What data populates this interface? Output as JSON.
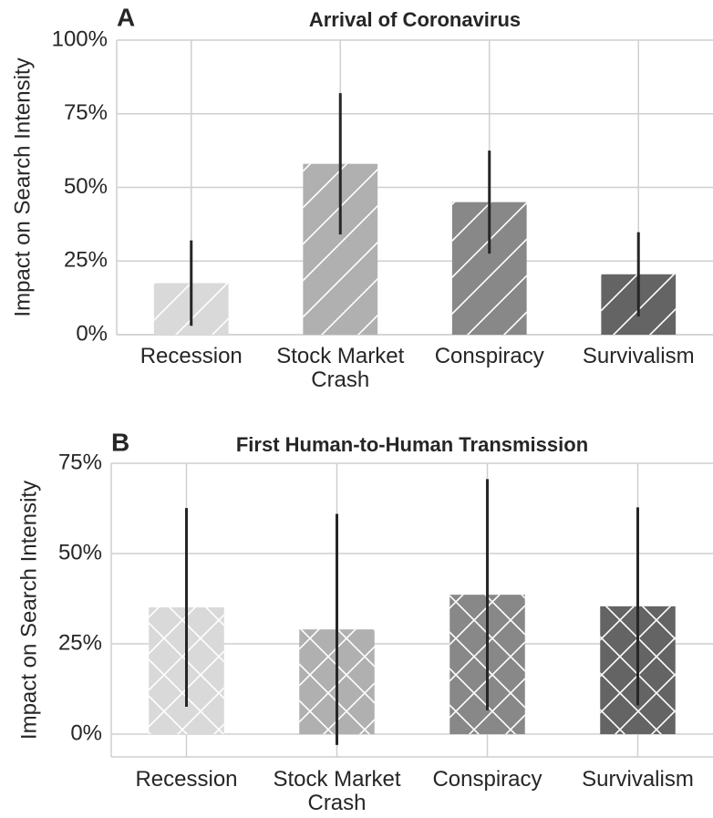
{
  "chart_data": [
    {
      "type": "bar",
      "panel": "A",
      "title": "Arrival of Coronavirus",
      "ylabel": "Impact on Search Intensity",
      "categories": [
        "Recession",
        "Stock Market Crash",
        "Conspiracy",
        "Survivalism"
      ],
      "values": [
        17.5,
        58,
        45,
        20.5
      ],
      "errors": [
        14.5,
        24,
        17.5,
        14.3
      ],
      "colors": [
        "#d9d9d9",
        "#b0b0b0",
        "#888888",
        "#646464"
      ],
      "hatch": "/",
      "ylim": [
        0,
        100
      ],
      "yticks": [
        {
          "value": 0,
          "label": "0%"
        },
        {
          "value": 25,
          "label": "25%"
        },
        {
          "value": 50,
          "label": "50%"
        },
        {
          "value": 75,
          "label": "75%"
        },
        {
          "value": 100,
          "label": "100%"
        }
      ],
      "grid": true
    },
    {
      "type": "bar",
      "panel": "B",
      "title": "First Human-to-Human Transmission",
      "ylabel": "Impact on Search Intensity",
      "categories": [
        "Recession",
        "Stock Market Crash",
        "Conspiracy",
        "Survivalism"
      ],
      "values": [
        35.1,
        29,
        38.6,
        35.4
      ],
      "errors": [
        27.5,
        32,
        32,
        27.4
      ],
      "colors": [
        "#d9d9d9",
        "#b0b0b0",
        "#888888",
        "#646464"
      ],
      "hatch": "x",
      "ylim": [
        -6.3,
        75
      ],
      "yticks": [
        {
          "value": 0,
          "label": "0%"
        },
        {
          "value": 25,
          "label": "25%"
        },
        {
          "value": 50,
          "label": "50%"
        },
        {
          "value": 75,
          "label": "75%"
        }
      ],
      "grid": true
    }
  ]
}
